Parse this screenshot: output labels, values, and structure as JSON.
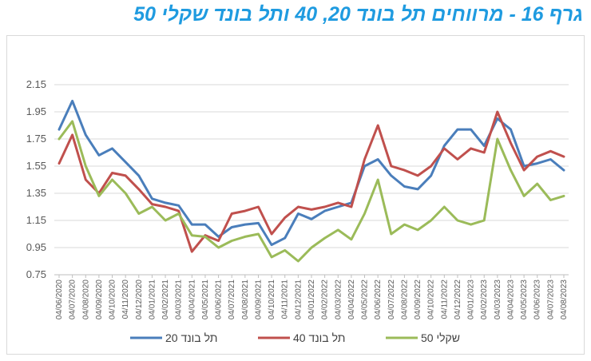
{
  "title": "גרף 16 - מרווחים תל בונד 20, 40 ותל בונד שקלי 50",
  "chart_data": {
    "type": "line",
    "title": "גרף 16 - מרווחים תל בונד 20, 40 ותל בונד שקלי 50",
    "xlabel": "",
    "ylabel": "",
    "ylim": [
      0.75,
      2.15
    ],
    "yticks": [
      "0.75",
      "0.95",
      "1.15",
      "1.35",
      "1.55",
      "1.75",
      "1.95",
      "2.15"
    ],
    "grid": "horizontal",
    "legend": "bottom",
    "x": [
      "04/06/2020",
      "04/07/2020",
      "04/08/2020",
      "04/09/2020",
      "04/10/2020",
      "04/11/2020",
      "04/12/2020",
      "04/01/2021",
      "04/02/2021",
      "04/03/2021",
      "04/04/2021",
      "04/05/2021",
      "04/06/2021",
      "04/07/2021",
      "04/08/2021",
      "04/09/2021",
      "04/10/2021",
      "04/11/2021",
      "04/12/2021",
      "04/01/2022",
      "04/02/2022",
      "04/03/2022",
      "04/04/2022",
      "04/05/2022",
      "04/06/2022",
      "04/07/2022",
      "04/08/2022",
      "04/09/2022",
      "04/10/2022",
      "04/11/2022",
      "04/12/2022",
      "04/01/2023",
      "04/02/2023",
      "04/03/2023",
      "04/04/2023",
      "04/05/2023",
      "04/06/2023",
      "04/07/2023",
      "04/08/2023"
    ],
    "series": [
      {
        "name": "תל בונד 20",
        "color": "#4a7ebb",
        "values": [
          1.82,
          2.03,
          1.78,
          1.63,
          1.68,
          1.58,
          1.48,
          1.31,
          1.28,
          1.26,
          1.12,
          1.12,
          1.03,
          1.1,
          1.12,
          1.13,
          0.97,
          1.02,
          1.2,
          1.16,
          1.22,
          1.25,
          1.28,
          1.55,
          1.6,
          1.48,
          1.4,
          1.38,
          1.48,
          1.7,
          1.82,
          1.82,
          1.7,
          1.9,
          1.82,
          1.55,
          1.57,
          1.6,
          1.52
        ]
      },
      {
        "name": "תל בונד 40",
        "color": "#c0504d",
        "values": [
          1.57,
          1.78,
          1.45,
          1.35,
          1.5,
          1.48,
          1.38,
          1.27,
          1.25,
          1.22,
          0.92,
          1.04,
          1.0,
          1.2,
          1.22,
          1.25,
          1.05,
          1.17,
          1.25,
          1.23,
          1.25,
          1.28,
          1.25,
          1.6,
          1.85,
          1.55,
          1.52,
          1.48,
          1.55,
          1.68,
          1.6,
          1.68,
          1.65,
          1.95,
          1.72,
          1.52,
          1.62,
          1.66,
          1.62
        ]
      },
      {
        "name": "שקלי 50",
        "color": "#9bbb59",
        "values": [
          1.75,
          1.88,
          1.55,
          1.33,
          1.45,
          1.35,
          1.2,
          1.25,
          1.15,
          1.2,
          1.04,
          1.03,
          0.95,
          1.0,
          1.03,
          1.05,
          0.88,
          0.93,
          0.85,
          0.95,
          1.02,
          1.08,
          1.01,
          1.2,
          1.45,
          1.05,
          1.12,
          1.08,
          1.15,
          1.25,
          1.15,
          1.12,
          1.15,
          1.75,
          1.52,
          1.33,
          1.42,
          1.3,
          1.33
        ]
      }
    ]
  }
}
